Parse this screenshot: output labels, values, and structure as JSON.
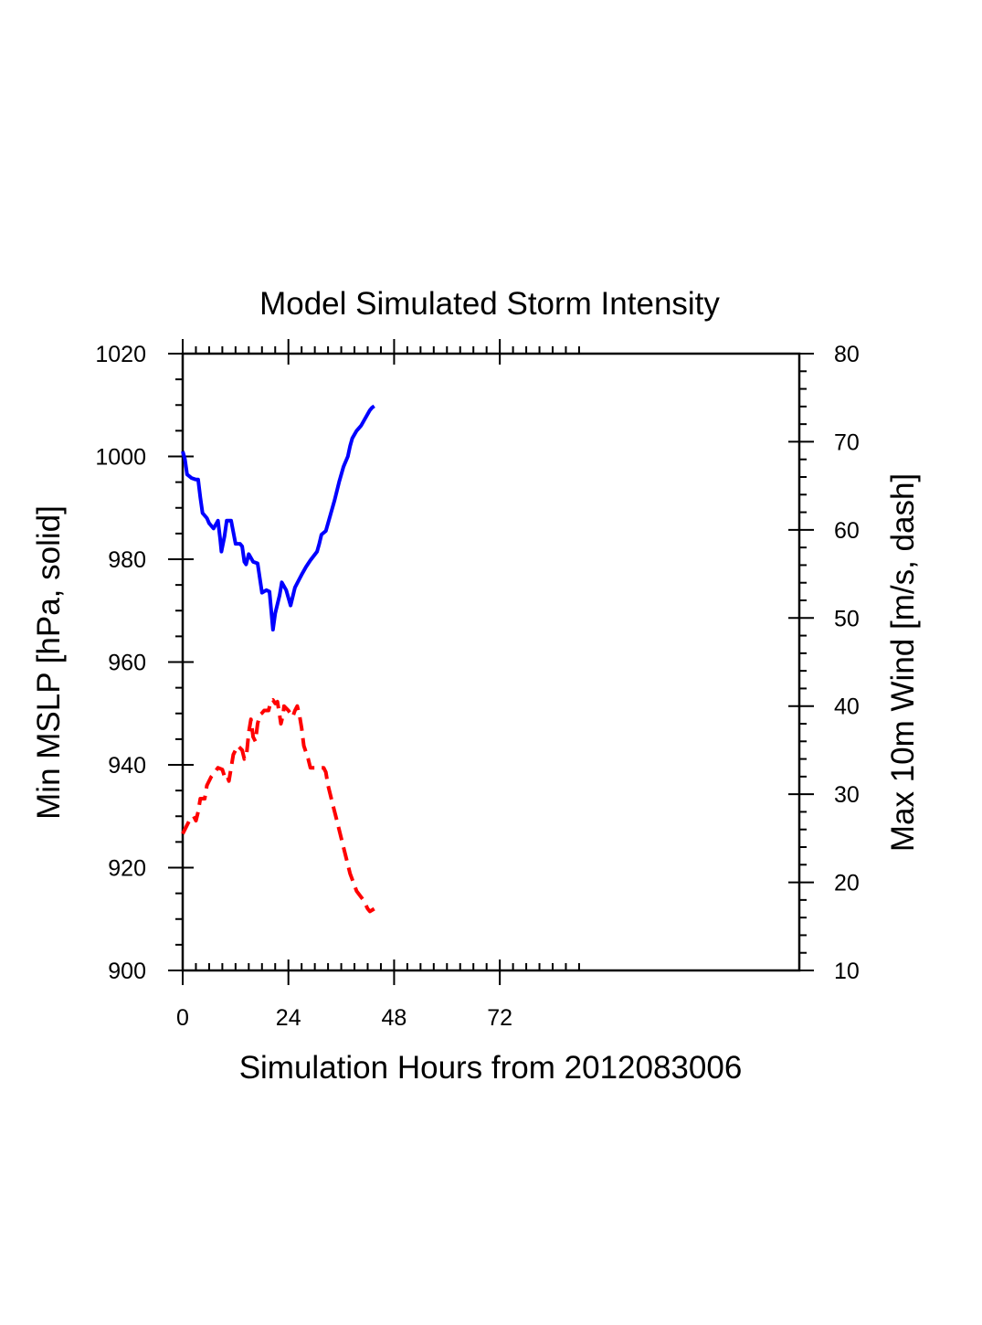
{
  "chart_data": {
    "type": "line",
    "title": "Model Simulated Storm Intensity",
    "xlabel": "Simulation Hours from 2012083006",
    "ylabel_left": "Min MSLP  [hPa, solid]",
    "ylabel_right": "Max 10m Wind  [m/s, dash]",
    "xlim": [
      0,
      140
    ],
    "ylim_left": [
      900,
      1020
    ],
    "ylim_right": [
      10,
      80
    ],
    "x_ticks": [
      0,
      24,
      48,
      72
    ],
    "y_ticks_left": [
      900,
      920,
      940,
      960,
      980,
      1000,
      1020
    ],
    "y_ticks_right": [
      10,
      20,
      30,
      40,
      50,
      60,
      70,
      80
    ],
    "grid": false,
    "series": [
      {
        "axis": "left",
        "style": "solid",
        "color": "#0000ff",
        "points": [
          [
            0,
            1001
          ],
          [
            0.5,
            999.5
          ],
          [
            1,
            996.5
          ],
          [
            2,
            995.8
          ],
          [
            3,
            995.5
          ],
          [
            3.5,
            995.5
          ],
          [
            4,
            992
          ],
          [
            4.5,
            989
          ],
          [
            5.5,
            988
          ],
          [
            6,
            987
          ],
          [
            7,
            986
          ],
          [
            8,
            987.5
          ],
          [
            8.5,
            984
          ],
          [
            8.8,
            981.5
          ],
          [
            9.5,
            984.5
          ],
          [
            10,
            987.5
          ],
          [
            11,
            987.5
          ],
          [
            12,
            983
          ],
          [
            13,
            983
          ],
          [
            13.5,
            982.5
          ],
          [
            14,
            979.5
          ],
          [
            14.4,
            979
          ],
          [
            15,
            981
          ],
          [
            16,
            979.5
          ],
          [
            17,
            979.2
          ],
          [
            18,
            973.5
          ],
          [
            19,
            974
          ],
          [
            19.7,
            973.7
          ],
          [
            20,
            971
          ],
          [
            20.5,
            966.3
          ],
          [
            21,
            969.5
          ],
          [
            22,
            973
          ],
          [
            22.5,
            975.5
          ],
          [
            23.5,
            974
          ],
          [
            24.5,
            971
          ],
          [
            25.5,
            974.5
          ],
          [
            27,
            977
          ],
          [
            28,
            978.5
          ],
          [
            29,
            979.8
          ],
          [
            30.5,
            981.5
          ],
          [
            31,
            983
          ],
          [
            31.5,
            984.8
          ],
          [
            32.5,
            985.5
          ],
          [
            33.5,
            988.5
          ],
          [
            34.5,
            991.5
          ],
          [
            35.5,
            995
          ],
          [
            36.5,
            998
          ],
          [
            37,
            999
          ],
          [
            37.5,
            1000
          ],
          [
            38,
            1002
          ],
          [
            38.5,
            1003.5
          ],
          [
            39.5,
            1005
          ],
          [
            40.5,
            1006
          ],
          [
            41.5,
            1007.5
          ],
          [
            42.5,
            1009
          ],
          [
            43,
            1009.5
          ],
          [
            43.5,
            1009.8
          ]
        ]
      },
      {
        "axis": "right",
        "style": "dash",
        "color": "#ff0000",
        "points": [
          [
            0,
            25.5
          ],
          [
            0.5,
            26
          ],
          [
            1.5,
            27
          ],
          [
            2.5,
            27.5
          ],
          [
            3,
            27
          ],
          [
            3.5,
            28
          ],
          [
            4,
            29.5
          ],
          [
            5,
            29.5
          ],
          [
            5.5,
            31
          ],
          [
            6.5,
            32
          ],
          [
            7,
            32.3
          ],
          [
            8,
            33
          ],
          [
            9,
            32.8
          ],
          [
            9.5,
            32
          ],
          [
            10,
            32.2
          ],
          [
            10.5,
            31.5
          ],
          [
            11,
            33
          ],
          [
            11.5,
            34.5
          ],
          [
            12.5,
            35.5
          ],
          [
            13.5,
            35
          ],
          [
            14,
            34
          ],
          [
            14.5,
            34.5
          ],
          [
            15,
            37
          ],
          [
            15.5,
            38.5
          ],
          [
            16,
            36.5
          ],
          [
            16.5,
            36
          ],
          [
            17,
            38
          ],
          [
            17.5,
            39
          ],
          [
            18,
            39.2
          ],
          [
            18.5,
            39.5
          ],
          [
            19,
            39.5
          ],
          [
            19.5,
            39.5
          ],
          [
            20,
            40.5
          ],
          [
            20.5,
            40.7
          ],
          [
            21,
            40.3
          ],
          [
            21.5,
            40.5
          ],
          [
            22,
            39
          ],
          [
            22.3,
            38
          ],
          [
            22.8,
            39
          ],
          [
            23,
            40
          ],
          [
            24,
            39.5
          ],
          [
            25,
            38.8
          ],
          [
            25.5,
            39.5
          ],
          [
            26,
            40
          ],
          [
            26.5,
            39
          ],
          [
            27,
            37.5
          ],
          [
            27.5,
            35.5
          ],
          [
            28.5,
            34
          ],
          [
            29,
            33
          ],
          [
            30,
            33
          ],
          [
            31,
            33
          ],
          [
            32,
            33
          ],
          [
            32.5,
            32.5
          ],
          [
            33,
            31
          ],
          [
            34,
            29
          ],
          [
            35,
            27
          ],
          [
            36,
            25
          ],
          [
            37,
            23
          ],
          [
            38,
            21
          ],
          [
            39.5,
            19
          ],
          [
            41,
            18
          ],
          [
            42,
            17
          ],
          [
            42.5,
            16.7
          ],
          [
            43.5,
            17
          ]
        ]
      }
    ]
  }
}
